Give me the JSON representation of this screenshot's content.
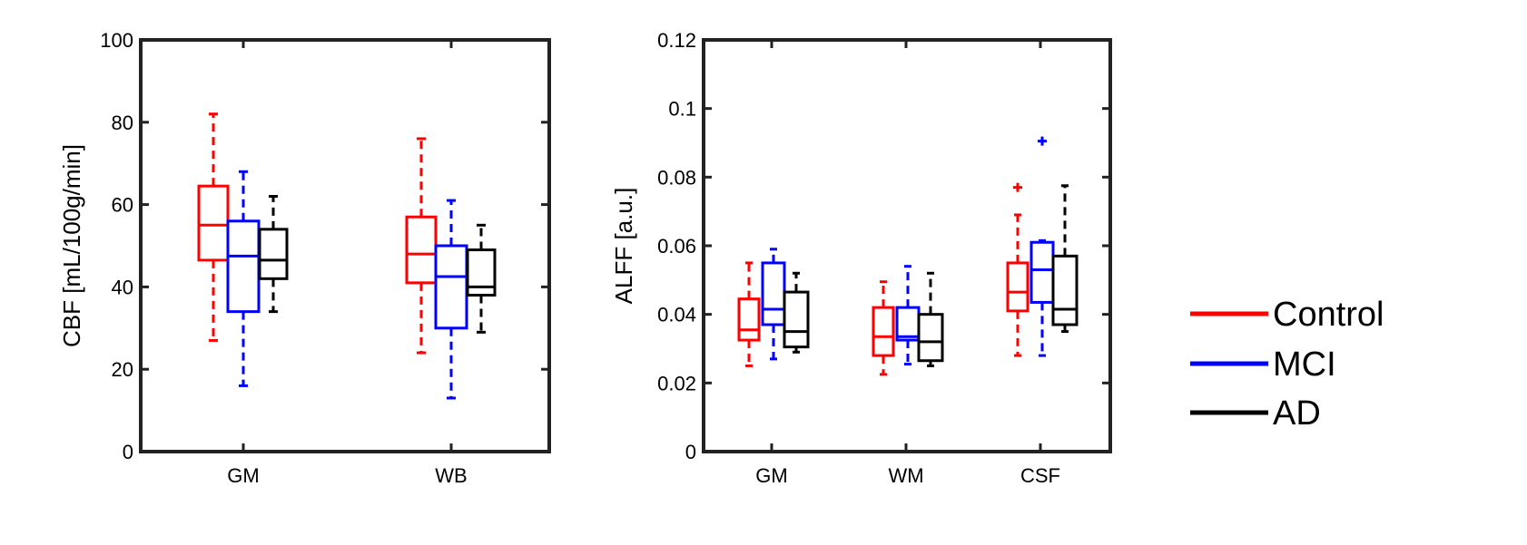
{
  "chart_data": [
    {
      "type": "boxplot",
      "title": "",
      "xlabel": "",
      "ylabel": "CBF [mL/100g/min]",
      "ylim": [
        0,
        100
      ],
      "yticks": [
        0,
        20,
        40,
        60,
        80,
        100
      ],
      "ytick_labels": [
        "0",
        "20",
        "40",
        "60",
        "80",
        "100"
      ],
      "categories": [
        "GM",
        "WB"
      ],
      "series": [
        {
          "name": "Control",
          "color": "#ff0000",
          "boxes": [
            {
              "min": 27,
              "q1": 46.5,
              "median": 55,
              "q3": 64.5,
              "max": 82,
              "outliers": []
            },
            {
              "min": 24,
              "q1": 41,
              "median": 48,
              "q3": 57,
              "max": 76,
              "outliers": []
            }
          ]
        },
        {
          "name": "MCI",
          "color": "#0000ff",
          "boxes": [
            {
              "min": 16,
              "q1": 34,
              "median": 47.5,
              "q3": 56,
              "max": 68,
              "outliers": []
            },
            {
              "min": 13,
              "q1": 30,
              "median": 42.5,
              "q3": 50,
              "max": 61,
              "outliers": []
            }
          ]
        },
        {
          "name": "AD",
          "color": "#000000",
          "boxes": [
            {
              "min": 34,
              "q1": 42,
              "median": 46.5,
              "q3": 54,
              "max": 62,
              "outliers": []
            },
            {
              "min": 29,
              "q1": 38,
              "median": 40,
              "q3": 49,
              "max": 55,
              "outliers": []
            }
          ]
        }
      ]
    },
    {
      "type": "boxplot",
      "title": "",
      "xlabel": "",
      "ylabel": "ALFF [a.u.]",
      "ylim": [
        0,
        0.12
      ],
      "yticks": [
        0,
        0.02,
        0.04,
        0.06,
        0.08,
        0.1,
        0.12
      ],
      "ytick_labels": [
        "0",
        "0.02",
        "0.04",
        "0.06",
        "0.08",
        "0.1",
        "0.12"
      ],
      "categories": [
        "GM",
        "WM",
        "CSF"
      ],
      "series": [
        {
          "name": "Control",
          "color": "#ff0000",
          "boxes": [
            {
              "min": 0.025,
              "q1": 0.0325,
              "median": 0.0355,
              "q3": 0.0445,
              "max": 0.055,
              "outliers": []
            },
            {
              "min": 0.0225,
              "q1": 0.028,
              "median": 0.0335,
              "q3": 0.042,
              "max": 0.0495,
              "outliers": []
            },
            {
              "min": 0.028,
              "q1": 0.041,
              "median": 0.0465,
              "q3": 0.055,
              "max": 0.069,
              "outliers": [
                0.077
              ]
            }
          ]
        },
        {
          "name": "MCI",
          "color": "#0000ff",
          "boxes": [
            {
              "min": 0.027,
              "q1": 0.037,
              "median": 0.0415,
              "q3": 0.055,
              "max": 0.059,
              "outliers": []
            },
            {
              "min": 0.0255,
              "q1": 0.0325,
              "median": 0.0335,
              "q3": 0.042,
              "max": 0.054,
              "outliers": []
            },
            {
              "min": 0.028,
              "q1": 0.0435,
              "median": 0.053,
              "q3": 0.061,
              "max": 0.0615,
              "outliers": [
                0.0905
              ]
            }
          ]
        },
        {
          "name": "AD",
          "color": "#000000",
          "boxes": [
            {
              "min": 0.029,
              "q1": 0.0305,
              "median": 0.035,
              "q3": 0.0465,
              "max": 0.052,
              "outliers": []
            },
            {
              "min": 0.025,
              "q1": 0.0265,
              "median": 0.032,
              "q3": 0.04,
              "max": 0.052,
              "outliers": []
            },
            {
              "min": 0.035,
              "q1": 0.037,
              "median": 0.0415,
              "q3": 0.057,
              "max": 0.0775,
              "outliers": []
            }
          ]
        }
      ]
    }
  ],
  "legend": {
    "placement": "right",
    "entries": [
      {
        "label": "Control",
        "color": "#ff0000"
      },
      {
        "label": "MCI",
        "color": "#0000ff"
      },
      {
        "label": "AD",
        "color": "#000000"
      }
    ]
  }
}
